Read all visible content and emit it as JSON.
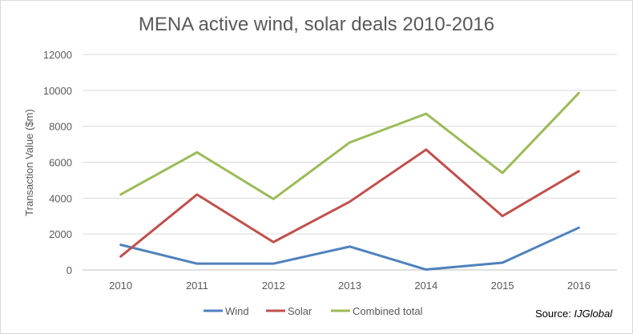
{
  "chart_data": {
    "type": "line",
    "title": "MENA active wind, solar deals 2010-2016",
    "xlabel": "",
    "ylabel": "Transaction Value ($m)",
    "categories": [
      "2010",
      "2011",
      "2012",
      "2013",
      "2014",
      "2015",
      "2016"
    ],
    "ylim": [
      0,
      12000
    ],
    "yticks": [
      0,
      2000,
      4000,
      6000,
      8000,
      10000,
      12000
    ],
    "grid": true,
    "legend_position": "bottom",
    "series": [
      {
        "name": "Wind",
        "color": "#4f81bd",
        "values": [
          1400,
          350,
          350,
          1300,
          20,
          400,
          2350
        ]
      },
      {
        "name": "Solar",
        "color": "#c0504d",
        "values": [
          750,
          4200,
          1550,
          3800,
          6700,
          3000,
          5500
        ]
      },
      {
        "name": "Combined total",
        "color": "#9bbb59",
        "values": [
          4200,
          6550,
          3950,
          7100,
          8700,
          5400,
          9850
        ]
      }
    ]
  },
  "source": {
    "label": "Source: ",
    "name": "IJGlobal"
  }
}
